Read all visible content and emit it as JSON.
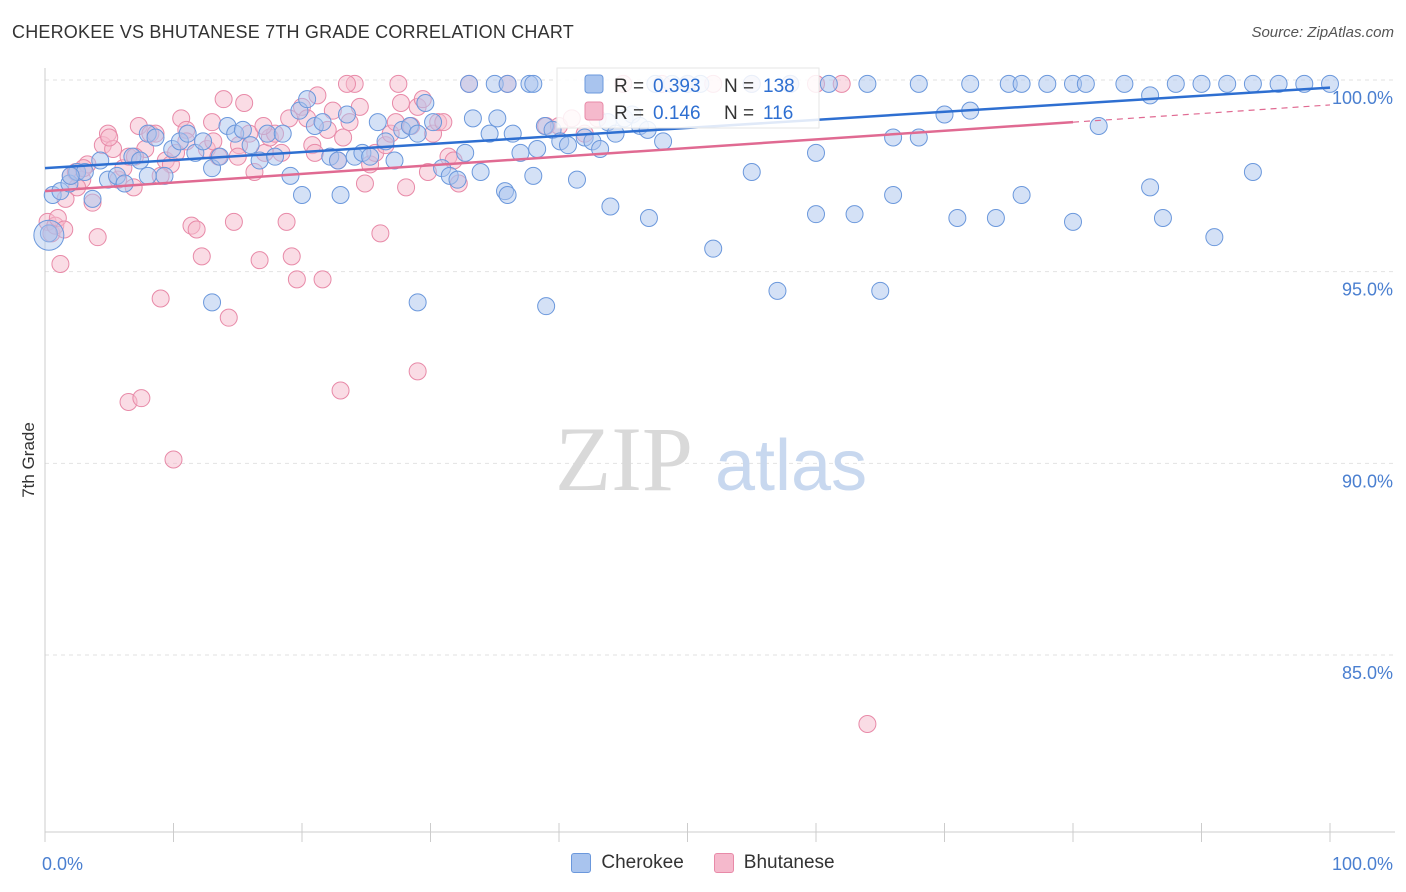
{
  "header": {
    "title": "CHEROKEE VS BHUTANESE 7TH GRADE CORRELATION CHART",
    "source": "Source: ZipAtlas.com"
  },
  "watermark": {
    "zip": "ZIP",
    "atlas": "atlas"
  },
  "legend": {
    "cherokee": {
      "r_label": "R =",
      "r_value": "0.393",
      "n_label": "N =",
      "n_value": "138"
    },
    "bhutanese": {
      "r_label": "R =",
      "r_value": "0.146",
      "n_label": "N =",
      "n_value": "116"
    }
  },
  "bottom_legend": {
    "cherokee": "Cherokee",
    "bhutanese": "Bhutanese"
  },
  "colors": {
    "cherokee_fill": "#a9c4ee",
    "cherokee_stroke": "#6b98dc",
    "cherokee_line": "#2e6fd1",
    "bhutanese_fill": "#f5b9cc",
    "bhutanese_stroke": "#e88aa8",
    "bhutanese_line": "#e06a92",
    "axis_label": "#4a7fd0"
  },
  "chart_data": {
    "type": "scatter",
    "title": "CHEROKEE VS BHUTANESE 7TH GRADE CORRELATION CHART",
    "xlabel": "",
    "ylabel": "7th Grade",
    "xlim": [
      0,
      100
    ],
    "ylim": [
      80.5,
      100.5
    ],
    "x_tick_labels": [
      "0.0%",
      "100.0%"
    ],
    "y_ticks": [
      100,
      95,
      90,
      85
    ],
    "y_tick_labels": [
      "100.0%",
      "95.0%",
      "90.0%",
      "85.0%"
    ],
    "grid": true,
    "legend_position": "top-center",
    "series": [
      {
        "name": "Cherokee",
        "r": 0.393,
        "n": 138,
        "trend": {
          "x": [
            0,
            100
          ],
          "y": [
            97.7,
            99.8
          ]
        },
        "points": [
          [
            0.3,
            96.0
          ],
          [
            0.6,
            97.0
          ],
          [
            1.2,
            97.1
          ],
          [
            1.9,
            97.3
          ],
          [
            2.5,
            97.6
          ],
          [
            3.1,
            97.6
          ],
          [
            3.7,
            96.9
          ],
          [
            4.3,
            97.9
          ],
          [
            4.9,
            97.4
          ],
          [
            5.6,
            97.5
          ],
          [
            6.2,
            97.3
          ],
          [
            6.8,
            98.0
          ],
          [
            7.4,
            97.9
          ],
          [
            8.0,
            98.6
          ],
          [
            8.6,
            98.5
          ],
          [
            9.3,
            97.5
          ],
          [
            9.9,
            98.2
          ],
          [
            10.5,
            98.4
          ],
          [
            11.1,
            98.6
          ],
          [
            11.7,
            98.1
          ],
          [
            12.3,
            98.4
          ],
          [
            13.0,
            97.7
          ],
          [
            13.6,
            98.0
          ],
          [
            14.2,
            98.8
          ],
          [
            14.8,
            98.6
          ],
          [
            15.4,
            98.7
          ],
          [
            16.0,
            98.3
          ],
          [
            16.7,
            97.9
          ],
          [
            17.3,
            98.6
          ],
          [
            17.9,
            98.0
          ],
          [
            18.5,
            98.6
          ],
          [
            19.1,
            97.5
          ],
          [
            19.8,
            99.2
          ],
          [
            20.4,
            99.5
          ],
          [
            21.0,
            98.8
          ],
          [
            21.6,
            98.9
          ],
          [
            22.2,
            98.0
          ],
          [
            22.8,
            97.9
          ],
          [
            23.5,
            99.1
          ],
          [
            24.1,
            98.0
          ],
          [
            24.7,
            98.1
          ],
          [
            25.3,
            98.0
          ],
          [
            25.9,
            98.9
          ],
          [
            26.5,
            98.4
          ],
          [
            27.2,
            97.9
          ],
          [
            27.8,
            98.7
          ],
          [
            28.4,
            98.8
          ],
          [
            29.0,
            98.6
          ],
          [
            29.6,
            99.4
          ],
          [
            30.2,
            98.9
          ],
          [
            30.9,
            97.7
          ],
          [
            31.5,
            97.5
          ],
          [
            32.1,
            97.4
          ],
          [
            32.7,
            98.1
          ],
          [
            33.3,
            99.0
          ],
          [
            33.9,
            97.6
          ],
          [
            34.6,
            98.6
          ],
          [
            35.2,
            99.0
          ],
          [
            35.8,
            97.1
          ],
          [
            36.4,
            98.6
          ],
          [
            37.0,
            98.1
          ],
          [
            37.7,
            99.9
          ],
          [
            38.3,
            98.2
          ],
          [
            38.9,
            98.8
          ],
          [
            39.5,
            98.7
          ],
          [
            40.1,
            98.4
          ],
          [
            40.7,
            98.3
          ],
          [
            41.4,
            97.4
          ],
          [
            42.0,
            98.5
          ],
          [
            42.6,
            98.4
          ],
          [
            43.2,
            98.2
          ],
          [
            43.8,
            98.9
          ],
          [
            44.4,
            98.6
          ],
          [
            45.1,
            99.0
          ],
          [
            45.7,
            99.1
          ],
          [
            46.3,
            98.8
          ],
          [
            46.9,
            98.7
          ],
          [
            47.5,
            99.9
          ],
          [
            48.1,
            98.4
          ],
          [
            48.8,
            99.9
          ],
          [
            13.0,
            94.2
          ],
          [
            29.0,
            94.2
          ],
          [
            39.0,
            94.1
          ],
          [
            57.0,
            94.5
          ],
          [
            65.0,
            94.5
          ],
          [
            71.0,
            96.4
          ],
          [
            74.0,
            96.4
          ],
          [
            55.0,
            97.6
          ],
          [
            60.0,
            98.1
          ],
          [
            66.0,
            98.5
          ],
          [
            68.0,
            98.5
          ],
          [
            70.0,
            99.1
          ],
          [
            72.0,
            99.2
          ],
          [
            75.0,
            99.9
          ],
          [
            78.0,
            99.9
          ],
          [
            80.0,
            99.9
          ],
          [
            82.0,
            98.8
          ],
          [
            84.0,
            99.9
          ],
          [
            86.0,
            99.6
          ],
          [
            88.0,
            99.9
          ],
          [
            90.0,
            99.9
          ],
          [
            92.0,
            99.9
          ],
          [
            94.0,
            99.9
          ],
          [
            96.0,
            99.9
          ],
          [
            98.0,
            99.9
          ],
          [
            100.0,
            99.9
          ],
          [
            63.0,
            96.5
          ],
          [
            66.0,
            97.0
          ],
          [
            76.0,
            97.0
          ],
          [
            80.0,
            96.3
          ],
          [
            86.0,
            97.2
          ],
          [
            87.0,
            96.4
          ],
          [
            91.0,
            95.9
          ],
          [
            94.0,
            97.6
          ],
          [
            60.0,
            96.5
          ],
          [
            52.0,
            95.6
          ],
          [
            47.0,
            96.4
          ],
          [
            44.0,
            96.7
          ],
          [
            38.0,
            97.5
          ],
          [
            36.0,
            97.0
          ],
          [
            23.0,
            97.0
          ],
          [
            20.0,
            97.0
          ],
          [
            8.0,
            97.5
          ],
          [
            2.0,
            97.5
          ],
          [
            33.0,
            99.9
          ],
          [
            35.0,
            99.9
          ],
          [
            36.0,
            99.9
          ],
          [
            38.0,
            99.9
          ],
          [
            50.0,
            99.9
          ],
          [
            51.0,
            99.9
          ],
          [
            55.0,
            99.9
          ],
          [
            58.0,
            99.9
          ],
          [
            61.0,
            99.9
          ],
          [
            64.0,
            99.9
          ],
          [
            68.0,
            99.9
          ],
          [
            72.0,
            99.9
          ],
          [
            76.0,
            99.9
          ],
          [
            81.0,
            99.9
          ]
        ]
      },
      {
        "name": "Bhutanese",
        "r": 0.146,
        "n": 116,
        "trend": {
          "x": [
            0,
            80
          ],
          "y": [
            97.1,
            98.9
          ]
        },
        "points": [
          [
            0.2,
            96.3
          ],
          [
            0.5,
            96.0
          ],
          [
            0.8,
            96.2
          ],
          [
            1.2,
            95.2
          ],
          [
            1.6,
            96.9
          ],
          [
            2.0,
            97.5
          ],
          [
            2.4,
            97.6
          ],
          [
            2.9,
            97.4
          ],
          [
            3.3,
            97.8
          ],
          [
            3.7,
            96.8
          ],
          [
            4.1,
            95.9
          ],
          [
            4.5,
            98.3
          ],
          [
            4.9,
            98.6
          ],
          [
            5.3,
            98.2
          ],
          [
            5.7,
            97.4
          ],
          [
            6.1,
            97.7
          ],
          [
            6.5,
            98.0
          ],
          [
            6.9,
            97.2
          ],
          [
            7.3,
            98.8
          ],
          [
            7.8,
            98.2
          ],
          [
            8.2,
            98.6
          ],
          [
            8.6,
            98.6
          ],
          [
            9.0,
            94.3
          ],
          [
            9.4,
            97.9
          ],
          [
            9.8,
            97.8
          ],
          [
            10.2,
            98.1
          ],
          [
            10.6,
            99.0
          ],
          [
            11.0,
            98.7
          ],
          [
            11.4,
            96.2
          ],
          [
            11.8,
            96.1
          ],
          [
            12.2,
            95.4
          ],
          [
            12.6,
            98.2
          ],
          [
            13.1,
            98.4
          ],
          [
            13.5,
            98.0
          ],
          [
            13.9,
            99.5
          ],
          [
            14.3,
            93.8
          ],
          [
            14.7,
            96.3
          ],
          [
            15.1,
            98.3
          ],
          [
            15.5,
            99.4
          ],
          [
            15.9,
            98.6
          ],
          [
            16.3,
            97.6
          ],
          [
            16.7,
            95.3
          ],
          [
            17.1,
            98.1
          ],
          [
            17.5,
            98.5
          ],
          [
            17.9,
            98.6
          ],
          [
            18.4,
            98.1
          ],
          [
            18.8,
            96.3
          ],
          [
            19.2,
            95.4
          ],
          [
            19.6,
            94.8
          ],
          [
            20.0,
            99.3
          ],
          [
            20.4,
            99.0
          ],
          [
            20.8,
            98.3
          ],
          [
            21.2,
            99.6
          ],
          [
            21.6,
            94.8
          ],
          [
            22.0,
            98.7
          ],
          [
            22.4,
            99.2
          ],
          [
            22.8,
            97.9
          ],
          [
            23.2,
            98.5
          ],
          [
            23.7,
            98.9
          ],
          [
            24.1,
            99.9
          ],
          [
            24.5,
            99.3
          ],
          [
            24.9,
            97.3
          ],
          [
            25.3,
            97.8
          ],
          [
            25.7,
            98.1
          ],
          [
            26.1,
            96.0
          ],
          [
            26.5,
            98.3
          ],
          [
            26.9,
            98.6
          ],
          [
            27.3,
            98.9
          ],
          [
            27.7,
            99.4
          ],
          [
            28.1,
            97.2
          ],
          [
            28.5,
            98.8
          ],
          [
            29.0,
            99.3
          ],
          [
            29.4,
            99.5
          ],
          [
            29.8,
            97.6
          ],
          [
            30.2,
            98.6
          ],
          [
            30.6,
            98.9
          ],
          [
            31.0,
            98.9
          ],
          [
            31.4,
            98.0
          ],
          [
            31.8,
            97.9
          ],
          [
            32.2,
            97.3
          ],
          [
            6.5,
            91.6
          ],
          [
            7.5,
            91.7
          ],
          [
            10.0,
            90.1
          ],
          [
            23.0,
            91.9
          ],
          [
            29.0,
            92.4
          ],
          [
            64.0,
            83.2
          ],
          [
            23.5,
            99.9
          ],
          [
            27.5,
            99.9
          ],
          [
            33.0,
            99.9
          ],
          [
            36.0,
            99.9
          ],
          [
            39.0,
            98.8
          ],
          [
            40.0,
            98.8
          ],
          [
            41.0,
            99.0
          ],
          [
            42.0,
            98.6
          ],
          [
            43.0,
            99.0
          ],
          [
            45.0,
            99.9
          ],
          [
            48.0,
            99.9
          ],
          [
            50.0,
            99.9
          ],
          [
            52.0,
            99.9
          ],
          [
            55.0,
            99.9
          ],
          [
            58.0,
            99.9
          ],
          [
            60.0,
            99.9
          ],
          [
            62.0,
            99.9
          ],
          [
            1.0,
            96.4
          ],
          [
            3.0,
            97.7
          ],
          [
            5.0,
            98.5
          ],
          [
            7.0,
            98.0
          ],
          [
            9.0,
            97.5
          ],
          [
            11.0,
            98.4
          ],
          [
            13.0,
            98.9
          ],
          [
            15.0,
            98.0
          ],
          [
            17.0,
            98.8
          ],
          [
            19.0,
            99.0
          ],
          [
            21.0,
            98.1
          ],
          [
            1.5,
            96.1
          ],
          [
            2.5,
            97.2
          ]
        ]
      }
    ]
  }
}
